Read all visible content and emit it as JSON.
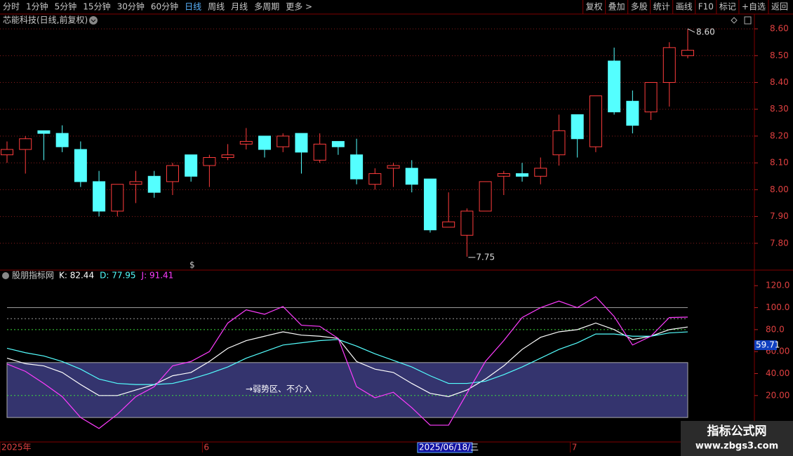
{
  "toolbar": {
    "left": [
      "分时",
      "1分钟",
      "5分钟",
      "15分钟",
      "30分钟",
      "60分钟",
      "日线",
      "周线",
      "月线",
      "多周期",
      "更多 >"
    ],
    "active": "日线",
    "right": [
      "复权",
      "叠加",
      "多股",
      "统计",
      "画线",
      "F10",
      "标记",
      "+自选",
      "返回"
    ]
  },
  "chart_data": [
    {
      "type": "candlestick",
      "title": "芯能科技(日线,前复权)",
      "up_color": "#ff3c3c",
      "down_color": "#54ffff",
      "grid": true,
      "ylim": [
        7.7,
        8.65
      ],
      "yticks": [
        {
          "value": 8.6,
          "label": "8.60"
        },
        {
          "value": 8.5,
          "label": "8.50"
        },
        {
          "value": 8.4,
          "label": "8.40"
        },
        {
          "value": 8.3,
          "label": "8.30"
        },
        {
          "value": 8.2,
          "label": "8.20"
        },
        {
          "value": 8.1,
          "label": "8.10"
        },
        {
          "value": 8,
          "label": "8.00"
        },
        {
          "value": 7.9,
          "label": "7.90"
        },
        {
          "value": 7.8,
          "label": "7.80"
        }
      ],
      "categories": [
        "2025年",
        null,
        null,
        null,
        null,
        null,
        null,
        null,
        null,
        null,
        null,
        "6",
        null,
        null,
        null,
        null,
        null,
        null,
        null,
        null,
        null,
        null,
        null,
        "2025/06/18/三",
        null,
        null,
        null,
        null,
        null,
        null,
        null,
        "7",
        null,
        null,
        null,
        null,
        null,
        null
      ],
      "open": [
        8.13,
        8.15,
        8.22,
        8.21,
        8.15,
        8.03,
        7.92,
        8.02,
        8.05,
        8.03,
        8.13,
        8.09,
        8.12,
        8.17,
        8.2,
        8.16,
        8.21,
        8.11,
        8.18,
        8.13,
        8.02,
        8.08,
        8.08,
        8.04,
        7.86,
        7.83,
        7.92,
        8.05,
        8.06,
        8.05,
        8.13,
        8.28,
        8.16,
        8.48,
        8.33,
        8.29,
        8.4,
        8.5
      ],
      "high": [
        8.18,
        8.2,
        8.22,
        8.24,
        8.18,
        8.07,
        8.02,
        8.07,
        8.07,
        8.1,
        8.13,
        8.13,
        8.17,
        8.23,
        8.2,
        8.21,
        8.21,
        8.21,
        8.18,
        8.19,
        8.08,
        8.1,
        8.11,
        8.04,
        7.99,
        7.93,
        8.03,
        8.07,
        8.1,
        8.12,
        8.28,
        8.28,
        8.35,
        8.53,
        8.37,
        8.4,
        8.55,
        8.6
      ],
      "low": [
        8.1,
        8.06,
        8.11,
        8.14,
        8.01,
        7.9,
        7.9,
        7.95,
        7.97,
        7.98,
        8.03,
        8.01,
        8.11,
        8.15,
        8.12,
        8.14,
        8.06,
        8.1,
        8.13,
        8.02,
        8,
        8.01,
        7.99,
        7.84,
        7.86,
        7.75,
        7.92,
        7.98,
        8.03,
        8.02,
        8.09,
        8.12,
        8.14,
        8.28,
        8.21,
        8.26,
        8.31,
        8.49
      ],
      "close": [
        8.15,
        8.19,
        8.21,
        8.16,
        8.03,
        7.92,
        8.02,
        8.03,
        7.99,
        8.09,
        8.05,
        8.12,
        8.13,
        8.18,
        8.15,
        8.2,
        8.14,
        8.17,
        8.16,
        8.04,
        8.06,
        8.09,
        8.02,
        7.85,
        7.88,
        7.92,
        8.03,
        8.06,
        8.05,
        8.08,
        8.22,
        8.19,
        8.35,
        8.29,
        8.24,
        8.4,
        8.53,
        8.52
      ],
      "annotations": [
        "8.60",
        "7.75"
      ],
      "signal": "$"
    },
    {
      "type": "line",
      "title": "股朋指标网",
      "ylim": [
        -21,
        131
      ],
      "yticks": [
        {
          "value": 120,
          "label": "120.0"
        },
        {
          "value": 100,
          "label": "100.0"
        },
        {
          "value": 80,
          "label": "80.0"
        },
        {
          "value": 60,
          "label": "60.00"
        },
        {
          "value": 40,
          "label": "40.00"
        },
        {
          "value": 20,
          "label": "20.00"
        }
      ],
      "zone": {
        "range": [
          0,
          50
        ],
        "color": "#34346e"
      },
      "reference_lines": [
        {
          "value": 100,
          "color": "#9a9a9a",
          "dashed": false
        },
        {
          "value": 90,
          "color": "#9a9a9a",
          "dashed": true
        },
        {
          "value": 80,
          "color": "#3cdc3c",
          "dashed": true
        },
        {
          "value": 20,
          "color": "#3cdc3c",
          "dashed": true
        }
      ],
      "series": [
        {
          "name": "K: 82.44",
          "color": "#ffffff",
          "values": [
            54,
            49,
            47,
            41,
            30,
            20,
            20,
            25,
            30,
            38,
            41,
            51,
            63,
            70,
            74,
            78,
            75,
            74,
            72,
            51,
            44,
            41,
            31,
            22,
            19,
            25,
            35,
            47,
            62,
            73,
            78,
            80,
            86,
            80,
            71,
            74,
            80,
            82.44
          ]
        },
        {
          "name": "D: 77.95",
          "color": "#54ffff",
          "values": [
            63,
            59,
            56,
            51,
            44,
            35,
            31,
            30,
            30,
            31,
            35,
            40,
            46,
            54,
            60,
            66,
            68,
            70,
            71,
            65,
            58,
            52,
            46,
            38,
            31,
            31,
            33,
            39,
            46,
            54,
            62,
            68,
            76,
            76,
            74,
            74,
            77,
            77.95
          ]
        },
        {
          "name": "J: 91.41",
          "color": "#ff3cff",
          "values": [
            48.7,
            42,
            31,
            19,
            0,
            -10,
            3,
            19,
            28,
            47,
            51,
            60,
            86,
            98,
            94,
            101,
            84,
            83,
            72,
            28,
            18,
            23,
            9,
            -7,
            -7,
            22,
            51,
            70,
            91,
            100,
            106,
            100,
            110,
            92,
            66,
            74,
            91,
            91.41
          ]
        }
      ],
      "annotations": [
        "→弱势区、不介入",
        "59.71"
      ]
    }
  ],
  "watermark": {
    "title": "指标公式网",
    "url": "www.zbgs3.com"
  }
}
